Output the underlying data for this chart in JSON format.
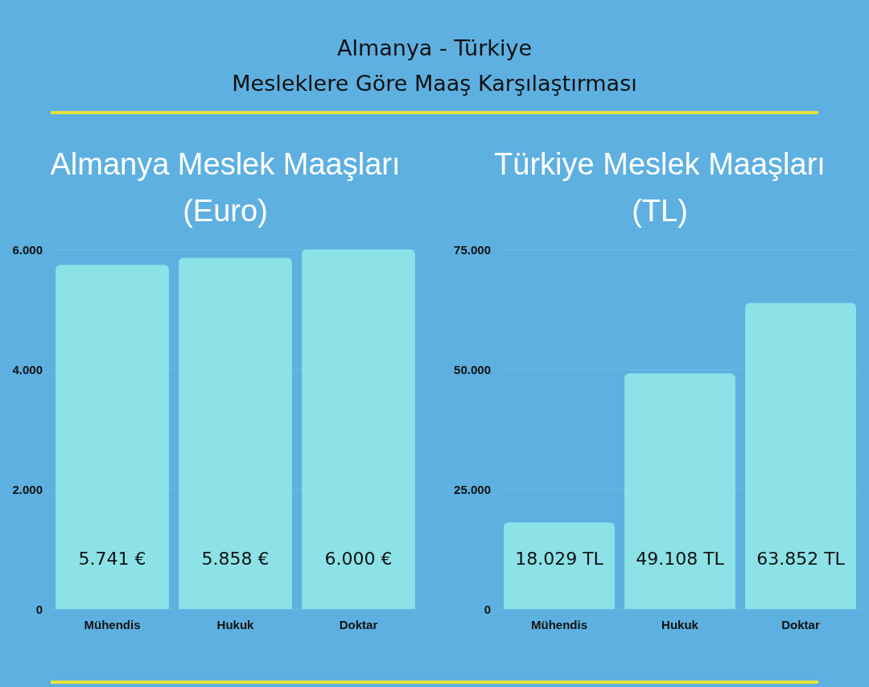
{
  "chart_data": [
    {
      "type": "bar",
      "title": "Almanya Meslek Maaşları (Euro)",
      "annotations": [
        "Almanya - Türkiye",
        "Mesleklere Göre Maaş Karşılaştırması"
      ],
      "categories": [
        "Mühendis",
        "Hukuk",
        "Doktar"
      ],
      "values": [
        5741,
        5858,
        6000
      ],
      "value_labels": [
        "5.741 €",
        "5.858 €",
        "6.000 €"
      ],
      "color": "#8ce2e6",
      "ylim": [
        0,
        6000
      ],
      "yticks": [
        {
          "value": 0,
          "label": "0"
        },
        {
          "value": 2000,
          "label": "2.000"
        },
        {
          "value": 4000,
          "label": "4.000"
        },
        {
          "value": 6000,
          "label": "6.000"
        }
      ],
      "grid": "y"
    },
    {
      "type": "bar",
      "title": "Türkiye Meslek Maaşları (TL)",
      "categories": [
        "Mühendis",
        "Hukuk",
        "Doktar"
      ],
      "values": [
        18029,
        49108,
        63852
      ],
      "value_labels": [
        "18.029 TL",
        "49.108 TL",
        "63.852 TL"
      ],
      "color": "#8ce2e6",
      "ylim": [
        0,
        75000
      ],
      "yticks": [
        {
          "value": 0,
          "label": "0"
        },
        {
          "value": 25000,
          "label": "25.000"
        },
        {
          "value": 50000,
          "label": "50.000"
        },
        {
          "value": 75000,
          "label": "75.000"
        }
      ],
      "grid": "y"
    }
  ]
}
